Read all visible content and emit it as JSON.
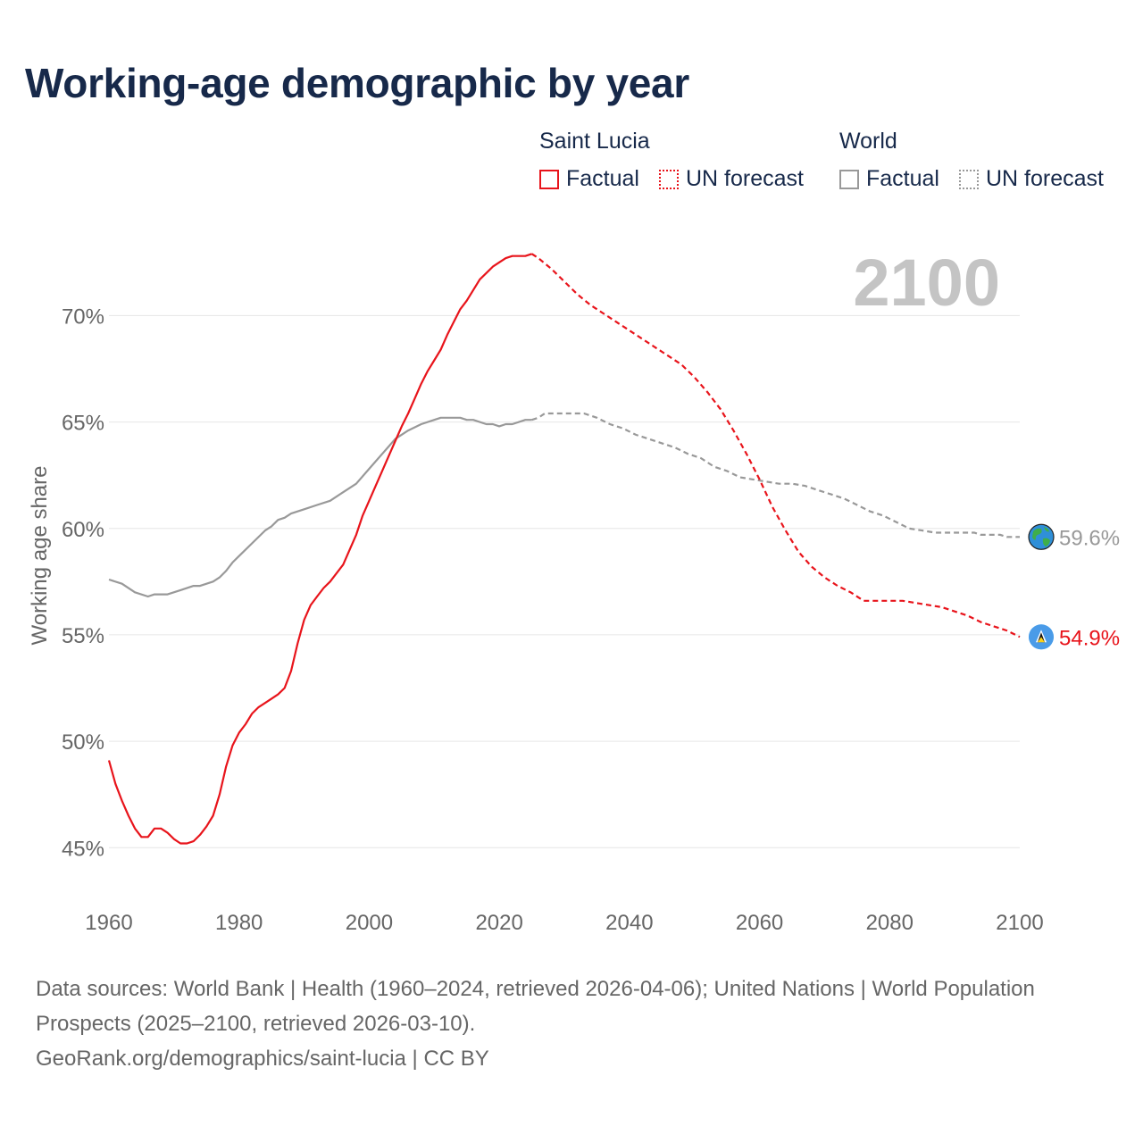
{
  "title": "Working-age demographic by year",
  "legend": {
    "groups": [
      {
        "label": "Saint Lucia",
        "factual": "Factual",
        "forecast": "UN forecast"
      },
      {
        "label": "World",
        "factual": "Factual",
        "forecast": "UN forecast"
      }
    ]
  },
  "colors": {
    "saint_lucia": "#e8141b",
    "world": "#999999",
    "title": "#17294a",
    "muted": "#666666"
  },
  "footer": {
    "sources": "Data sources: World Bank | Health (1960–2024, retrieved 2026-04-06); United Nations | World Population Prospects (2025–2100, retrieved 2026-03-10).",
    "credit": "GeoRank.org/demographics/saint-lucia | CC BY"
  },
  "chart_data": {
    "type": "line",
    "ylabel": "Working age share",
    "xlabel": "",
    "xlim": [
      1960,
      2100
    ],
    "ylim": [
      43.5,
      73.5
    ],
    "x_ticks": [
      "1960",
      "1980",
      "2000",
      "2020",
      "2040",
      "2060",
      "2080",
      "2100"
    ],
    "y_ticks": [
      "45%",
      "50%",
      "55%",
      "60%",
      "65%",
      "70%"
    ],
    "y_tick_values": [
      45,
      50,
      55,
      60,
      65,
      70
    ],
    "year_label": "2100",
    "forecast_start": 2025,
    "series": [
      {
        "name": "Saint Lucia",
        "end_label": "54.9%",
        "end_icon": "saint-lucia-flag-icon",
        "factual": [
          [
            1960,
            49.1
          ],
          [
            1961,
            48.0
          ],
          [
            1962,
            47.2
          ],
          [
            1963,
            46.5
          ],
          [
            1964,
            45.9
          ],
          [
            1965,
            45.5
          ],
          [
            1966,
            45.5
          ],
          [
            1967,
            45.9
          ],
          [
            1968,
            45.9
          ],
          [
            1969,
            45.7
          ],
          [
            1970,
            45.4
          ],
          [
            1971,
            45.2
          ],
          [
            1972,
            45.2
          ],
          [
            1973,
            45.3
          ],
          [
            1974,
            45.6
          ],
          [
            1975,
            46.0
          ],
          [
            1976,
            46.5
          ],
          [
            1977,
            47.5
          ],
          [
            1978,
            48.8
          ],
          [
            1979,
            49.8
          ],
          [
            1980,
            50.4
          ],
          [
            1981,
            50.8
          ],
          [
            1982,
            51.3
          ],
          [
            1983,
            51.6
          ],
          [
            1984,
            51.8
          ],
          [
            1985,
            52.0
          ],
          [
            1986,
            52.2
          ],
          [
            1987,
            52.5
          ],
          [
            1988,
            53.3
          ],
          [
            1989,
            54.6
          ],
          [
            1990,
            55.7
          ],
          [
            1991,
            56.4
          ],
          [
            1992,
            56.8
          ],
          [
            1993,
            57.2
          ],
          [
            1994,
            57.5
          ],
          [
            1995,
            57.9
          ],
          [
            1996,
            58.3
          ],
          [
            1997,
            59.0
          ],
          [
            1998,
            59.7
          ],
          [
            1999,
            60.6
          ],
          [
            2000,
            61.3
          ],
          [
            2001,
            62.0
          ],
          [
            2002,
            62.7
          ],
          [
            2003,
            63.4
          ],
          [
            2004,
            64.1
          ],
          [
            2005,
            64.8
          ],
          [
            2006,
            65.4
          ],
          [
            2007,
            66.1
          ],
          [
            2008,
            66.8
          ],
          [
            2009,
            67.4
          ],
          [
            2010,
            67.9
          ],
          [
            2011,
            68.4
          ],
          [
            2012,
            69.1
          ],
          [
            2013,
            69.7
          ],
          [
            2014,
            70.3
          ],
          [
            2015,
            70.7
          ],
          [
            2016,
            71.2
          ],
          [
            2017,
            71.7
          ],
          [
            2018,
            72.0
          ],
          [
            2019,
            72.3
          ],
          [
            2020,
            72.5
          ],
          [
            2021,
            72.7
          ],
          [
            2022,
            72.8
          ],
          [
            2023,
            72.8
          ],
          [
            2024,
            72.8
          ],
          [
            2025,
            72.9
          ]
        ],
        "forecast": [
          [
            2025,
            72.9
          ],
          [
            2026,
            72.7
          ],
          [
            2028,
            72.2
          ],
          [
            2030,
            71.6
          ],
          [
            2032,
            71.0
          ],
          [
            2034,
            70.5
          ],
          [
            2036,
            70.1
          ],
          [
            2038,
            69.7
          ],
          [
            2040,
            69.3
          ],
          [
            2042,
            68.9
          ],
          [
            2044,
            68.5
          ],
          [
            2046,
            68.1
          ],
          [
            2048,
            67.7
          ],
          [
            2050,
            67.1
          ],
          [
            2052,
            66.4
          ],
          [
            2054,
            65.6
          ],
          [
            2056,
            64.6
          ],
          [
            2058,
            63.5
          ],
          [
            2060,
            62.3
          ],
          [
            2062,
            61.0
          ],
          [
            2064,
            59.9
          ],
          [
            2066,
            58.9
          ],
          [
            2068,
            58.2
          ],
          [
            2070,
            57.7
          ],
          [
            2072,
            57.3
          ],
          [
            2074,
            57.0
          ],
          [
            2076,
            56.6
          ],
          [
            2078,
            56.6
          ],
          [
            2080,
            56.6
          ],
          [
            2082,
            56.6
          ],
          [
            2084,
            56.5
          ],
          [
            2086,
            56.4
          ],
          [
            2088,
            56.3
          ],
          [
            2090,
            56.1
          ],
          [
            2092,
            55.9
          ],
          [
            2094,
            55.6
          ],
          [
            2096,
            55.4
          ],
          [
            2098,
            55.2
          ],
          [
            2100,
            54.9
          ]
        ]
      },
      {
        "name": "World",
        "end_label": "59.6%",
        "end_icon": "globe-icon",
        "factual": [
          [
            1960,
            57.6
          ],
          [
            1962,
            57.4
          ],
          [
            1964,
            57.0
          ],
          [
            1966,
            56.8
          ],
          [
            1967,
            56.9
          ],
          [
            1969,
            56.9
          ],
          [
            1971,
            57.1
          ],
          [
            1973,
            57.3
          ],
          [
            1974,
            57.3
          ],
          [
            1976,
            57.5
          ],
          [
            1977,
            57.7
          ],
          [
            1978,
            58.0
          ],
          [
            1979,
            58.4
          ],
          [
            1980,
            58.7
          ],
          [
            1982,
            59.3
          ],
          [
            1984,
            59.9
          ],
          [
            1985,
            60.1
          ],
          [
            1986,
            60.4
          ],
          [
            1987,
            60.5
          ],
          [
            1988,
            60.7
          ],
          [
            1990,
            60.9
          ],
          [
            1992,
            61.1
          ],
          [
            1994,
            61.3
          ],
          [
            1996,
            61.7
          ],
          [
            1998,
            62.1
          ],
          [
            2000,
            62.8
          ],
          [
            2002,
            63.5
          ],
          [
            2004,
            64.2
          ],
          [
            2006,
            64.6
          ],
          [
            2008,
            64.9
          ],
          [
            2010,
            65.1
          ],
          [
            2011,
            65.2
          ],
          [
            2014,
            65.2
          ],
          [
            2015,
            65.1
          ],
          [
            2016,
            65.1
          ],
          [
            2018,
            64.9
          ],
          [
            2019,
            64.9
          ],
          [
            2020,
            64.8
          ],
          [
            2021,
            64.9
          ],
          [
            2022,
            64.9
          ],
          [
            2024,
            65.1
          ],
          [
            2025,
            65.1
          ]
        ],
        "forecast": [
          [
            2025,
            65.1
          ],
          [
            2026,
            65.2
          ],
          [
            2027,
            65.4
          ],
          [
            2029,
            65.4
          ],
          [
            2031,
            65.4
          ],
          [
            2033,
            65.4
          ],
          [
            2035,
            65.2
          ],
          [
            2037,
            64.9
          ],
          [
            2039,
            64.7
          ],
          [
            2041,
            64.4
          ],
          [
            2043,
            64.2
          ],
          [
            2045,
            64.0
          ],
          [
            2047,
            63.8
          ],
          [
            2049,
            63.5
          ],
          [
            2051,
            63.3
          ],
          [
            2053,
            62.9
          ],
          [
            2055,
            62.7
          ],
          [
            2057,
            62.4
          ],
          [
            2059,
            62.3
          ],
          [
            2061,
            62.2
          ],
          [
            2063,
            62.1
          ],
          [
            2065,
            62.1
          ],
          [
            2067,
            62.0
          ],
          [
            2069,
            61.8
          ],
          [
            2071,
            61.6
          ],
          [
            2073,
            61.4
          ],
          [
            2075,
            61.1
          ],
          [
            2077,
            60.8
          ],
          [
            2079,
            60.6
          ],
          [
            2081,
            60.3
          ],
          [
            2083,
            60.0
          ],
          [
            2085,
            59.9
          ],
          [
            2087,
            59.8
          ],
          [
            2090,
            59.8
          ],
          [
            2093,
            59.8
          ],
          [
            2094,
            59.7
          ],
          [
            2097,
            59.7
          ],
          [
            2098,
            59.6
          ],
          [
            2100,
            59.6
          ]
        ]
      }
    ]
  }
}
